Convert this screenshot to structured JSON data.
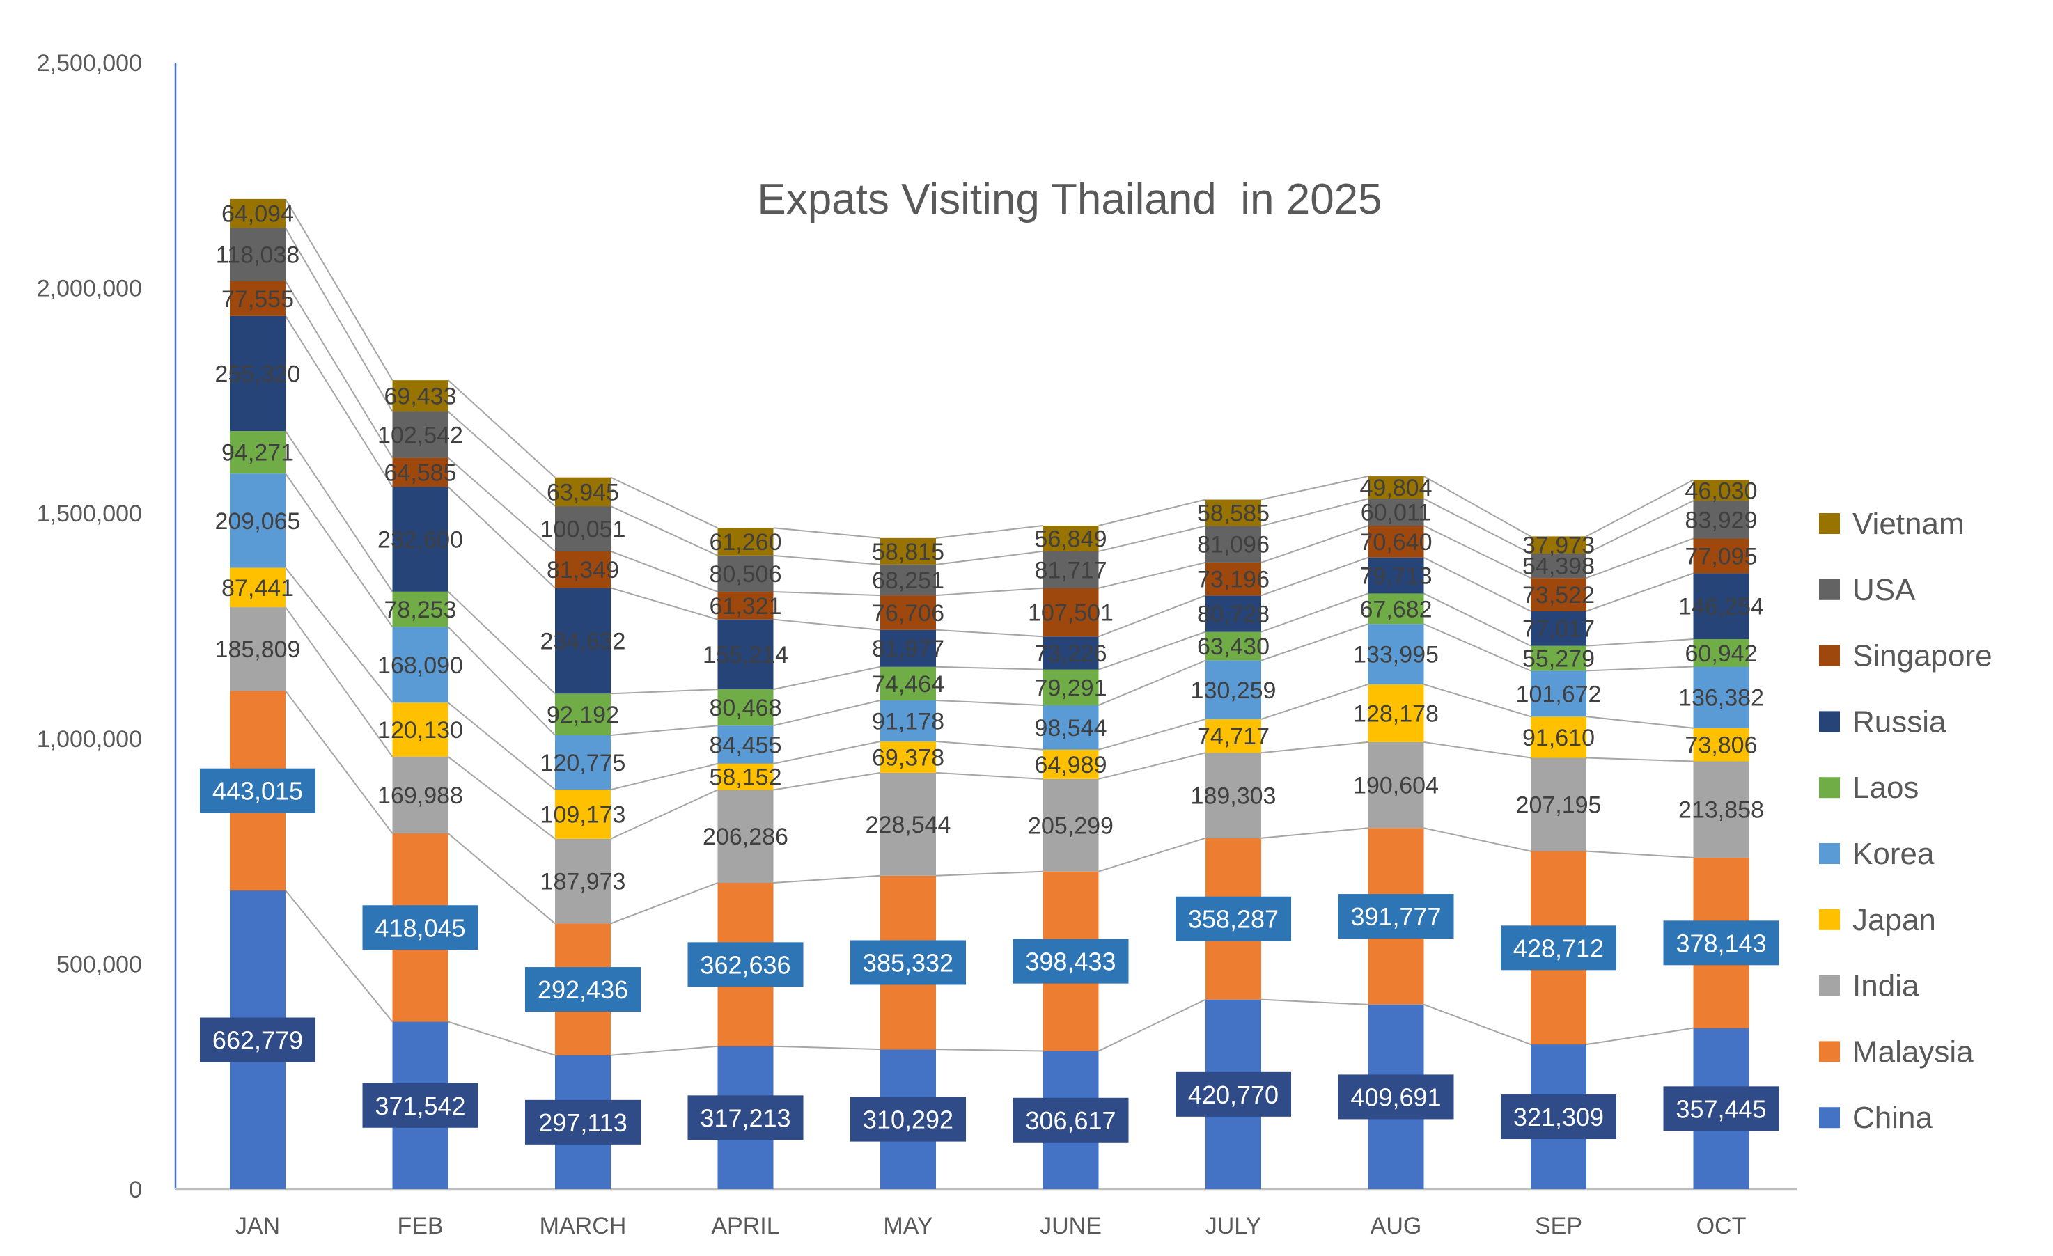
{
  "chart_data": {
    "type": "bar",
    "stacked": true,
    "title": "Expats Visiting Thailand  in 2025",
    "categories": [
      "JAN",
      "FEB",
      "MARCH",
      "APRIL",
      "MAY",
      "JUNE",
      "JULY",
      "AUG",
      "SEP",
      "OCT"
    ],
    "y_ticks": [
      "0",
      "500,000",
      "1,000,000",
      "1,500,000",
      "2,000,000",
      "2,500,000"
    ],
    "ylim": [
      0,
      2500000
    ],
    "grid": false,
    "series_lines": true,
    "legend_position": "right",
    "series": [
      {
        "name": "China",
        "color": "#4472C4",
        "values": [
          662779,
          371542,
          297113,
          317213,
          310292,
          306617,
          420770,
          409691,
          321309,
          357445
        ],
        "labels": [
          "662,779",
          "371,542",
          "297,113",
          "317,213",
          "310,292",
          "306,617",
          "420,770",
          "409,691",
          "321,309",
          "357,445"
        ]
      },
      {
        "name": "Malaysia",
        "color": "#ED7D31",
        "values": [
          443015,
          418045,
          292436,
          362636,
          385332,
          398433,
          358287,
          391777,
          428712,
          378143
        ],
        "labels": [
          "443,015",
          "418,045",
          "292,436",
          "362,636",
          "385,332",
          "398,433",
          "358,287",
          "391,777",
          "428,712",
          "378,143"
        ]
      },
      {
        "name": "India",
        "color": "#A5A5A5",
        "values": [
          185809,
          169988,
          187973,
          206286,
          228544,
          205299,
          189303,
          190604,
          207195,
          213858
        ],
        "labels": [
          "185,809",
          "169,988",
          "187,973",
          "206,286",
          "228,544",
          "205,299",
          "189,303",
          "190,604",
          "207,195",
          "213,858"
        ]
      },
      {
        "name": "Japan",
        "color": "#FFC000",
        "values": [
          87441,
          120130,
          109173,
          58152,
          69378,
          64989,
          74717,
          128178,
          91610,
          73806
        ],
        "labels": [
          "87,441",
          "120,130",
          "109,173",
          "58,152",
          "69,378",
          "64,989",
          "74,717",
          "128,178",
          "91,610",
          "73,806"
        ]
      },
      {
        "name": "Korea",
        "color": "#5B9BD5",
        "values": [
          209065,
          168090,
          120775,
          84455,
          91178,
          98544,
          130259,
          133995,
          101672,
          136382
        ],
        "labels": [
          "209,065",
          "168,090",
          "120,775",
          "84,455",
          "91,178",
          "98,544",
          "130,259",
          "133,995",
          "101,672",
          "136,382"
        ]
      },
      {
        "name": "Laos",
        "color": "#70AD47",
        "values": [
          94271,
          78253,
          92192,
          80468,
          74464,
          79291,
          63430,
          67682,
          55279,
          60942
        ],
        "labels": [
          "94,271",
          "78,253",
          "92,192",
          "80,468",
          "74,464",
          "79,291",
          "63,430",
          "67,682",
          "55,279",
          "60,942"
        ]
      },
      {
        "name": "Russia",
        "color": "#264478",
        "values": [
          255320,
          232600,
          234632,
          155214,
          81977,
          73226,
          80728,
          79713,
          77017,
          146254
        ],
        "labels": [
          "255,320",
          "232,600",
          "234,632",
          "155,214",
          "81,977",
          "73,226",
          "80,728",
          "79,713",
          "77,017",
          "146,254"
        ]
      },
      {
        "name": "Singapore",
        "color": "#9E480E",
        "values": [
          77555,
          64585,
          81349,
          61321,
          76706,
          107501,
          73196,
          70640,
          73522,
          77095
        ],
        "labels": [
          "77,555",
          "64,585",
          "81,349",
          "61,321",
          "76,706",
          "107,501",
          "73,196",
          "70,640",
          "73,522",
          "77,095"
        ]
      },
      {
        "name": "USA",
        "color": "#636363",
        "values": [
          118038,
          102542,
          100051,
          80506,
          68251,
          81717,
          81096,
          60011,
          54398,
          83929
        ],
        "labels": [
          "118,038",
          "102,542",
          "100,051",
          "80,506",
          "68,251",
          "81,717",
          "81,096",
          "60,011",
          "54,398",
          "83,929"
        ]
      },
      {
        "name": "Vietnam",
        "color": "#997300",
        "values": [
          64094,
          69433,
          63945,
          61260,
          58815,
          56849,
          58585,
          49804,
          37973,
          46030
        ],
        "labels": [
          "64,094",
          "69,433",
          "63,945",
          "61,260",
          "58,815",
          "56,849",
          "58,585",
          "49,804",
          "37,973",
          "46,030"
        ]
      }
    ]
  }
}
